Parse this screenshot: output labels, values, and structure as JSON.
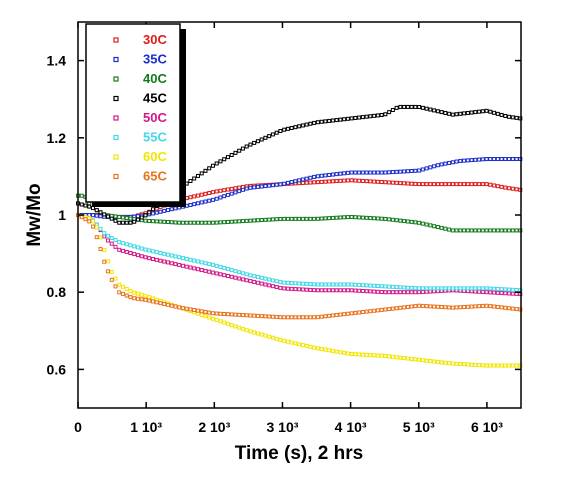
{
  "chart_data": {
    "type": "scatter",
    "xlabel": "Time (s), 2 hrs",
    "ylabel": "Mw/Mo",
    "xlim": [
      0,
      6500
    ],
    "ylim": [
      0.5,
      1.5
    ],
    "x_ticks": [
      {
        "value": 0,
        "label": "0"
      },
      {
        "value": 1000,
        "label": "1 10³"
      },
      {
        "value": 2000,
        "label": "2 10³"
      },
      {
        "value": 3000,
        "label": "3 10³"
      },
      {
        "value": 4000,
        "label": "4 10³"
      },
      {
        "value": 5000,
        "label": "5 10³"
      },
      {
        "value": 6000,
        "label": "6 10³"
      }
    ],
    "y_ticks": [
      {
        "value": 0.6,
        "label": "0.6"
      },
      {
        "value": 0.8,
        "label": "0.8"
      },
      {
        "value": 1.0,
        "label": "1"
      },
      {
        "value": 1.2,
        "label": "1.2"
      },
      {
        "value": 1.4,
        "label": "1.4"
      }
    ],
    "grid": false,
    "legend_position": "top-left",
    "series": [
      {
        "name": "30C",
        "color": "#dd1c1c",
        "x": [
          0,
          200,
          400,
          600,
          800,
          1000,
          1200,
          1500,
          2000,
          2500,
          3000,
          3500,
          4000,
          4500,
          5000,
          5500,
          6000,
          6300,
          6500
        ],
        "y": [
          1.0,
          1.0,
          1.0,
          0.995,
          0.995,
          1.005,
          1.02,
          1.04,
          1.06,
          1.075,
          1.08,
          1.085,
          1.09,
          1.085,
          1.08,
          1.08,
          1.08,
          1.07,
          1.065
        ]
      },
      {
        "name": "35C",
        "color": "#1b2ec9",
        "x": [
          0,
          200,
          400,
          600,
          800,
          1000,
          1500,
          2000,
          2500,
          3000,
          3500,
          4000,
          4500,
          5000,
          5300,
          5600,
          6000,
          6500
        ],
        "y": [
          1.0,
          1.0,
          0.995,
          0.995,
          0.995,
          1.0,
          1.02,
          1.04,
          1.07,
          1.08,
          1.1,
          1.11,
          1.11,
          1.115,
          1.13,
          1.14,
          1.145,
          1.145
        ]
      },
      {
        "name": "40C",
        "color": "#157a1f",
        "x": [
          0,
          100,
          200,
          400,
          600,
          800,
          1000,
          1500,
          2000,
          2500,
          3000,
          3500,
          4000,
          4500,
          5000,
          5500,
          6000,
          6500
        ],
        "y": [
          1.05,
          1.05,
          1.02,
          1.0,
          0.995,
          0.99,
          0.985,
          0.98,
          0.98,
          0.985,
          0.99,
          0.99,
          0.995,
          0.99,
          0.98,
          0.96,
          0.96,
          0.96
        ]
      },
      {
        "name": "45C",
        "color": "#000000",
        "x": [
          0,
          200,
          400,
          600,
          800,
          1000,
          1200,
          1500,
          2000,
          2500,
          3000,
          3500,
          4000,
          4500,
          4700,
          5000,
          5500,
          6000,
          6300,
          6500
        ],
        "y": [
          1.03,
          1.02,
          1.0,
          0.98,
          0.98,
          1.0,
          1.03,
          1.07,
          1.13,
          1.18,
          1.22,
          1.24,
          1.25,
          1.26,
          1.28,
          1.28,
          1.26,
          1.27,
          1.255,
          1.25
        ]
      },
      {
        "name": "50C",
        "color": "#d4188a",
        "x": [
          0,
          200,
          300,
          400,
          600,
          800,
          1000,
          1500,
          2000,
          2500,
          3000,
          3500,
          4000,
          4500,
          5000,
          5500,
          6000,
          6500
        ],
        "y": [
          1.0,
          0.99,
          0.97,
          0.94,
          0.91,
          0.9,
          0.89,
          0.87,
          0.85,
          0.83,
          0.81,
          0.805,
          0.805,
          0.8,
          0.8,
          0.805,
          0.8,
          0.795
        ]
      },
      {
        "name": "55C",
        "color": "#42d8e8",
        "x": [
          0,
          200,
          300,
          400,
          600,
          800,
          1000,
          1500,
          2000,
          2500,
          3000,
          3500,
          4000,
          4500,
          5000,
          5500,
          6000,
          6500
        ],
        "y": [
          1.0,
          0.99,
          0.97,
          0.95,
          0.93,
          0.92,
          0.91,
          0.89,
          0.87,
          0.845,
          0.825,
          0.82,
          0.82,
          0.815,
          0.81,
          0.81,
          0.81,
          0.805
        ]
      },
      {
        "name": "60C",
        "color": "#f2e600",
        "x": [
          0,
          200,
          300,
          400,
          500,
          600,
          800,
          1000,
          1500,
          2000,
          2500,
          3000,
          3500,
          4000,
          4500,
          5000,
          5500,
          6000,
          6500
        ],
        "y": [
          1.0,
          0.99,
          0.96,
          0.9,
          0.85,
          0.82,
          0.8,
          0.79,
          0.76,
          0.73,
          0.7,
          0.675,
          0.655,
          0.64,
          0.635,
          0.625,
          0.615,
          0.61,
          0.61
        ]
      },
      {
        "name": "65C",
        "color": "#e8731c",
        "x": [
          0,
          200,
          300,
          400,
          500,
          600,
          800,
          1000,
          1500,
          2000,
          2500,
          3000,
          3500,
          4000,
          4500,
          5000,
          5500,
          6000,
          6500
        ],
        "y": [
          1.0,
          0.98,
          0.93,
          0.87,
          0.83,
          0.8,
          0.785,
          0.78,
          0.76,
          0.745,
          0.74,
          0.735,
          0.735,
          0.745,
          0.755,
          0.765,
          0.76,
          0.765,
          0.755
        ]
      }
    ]
  }
}
